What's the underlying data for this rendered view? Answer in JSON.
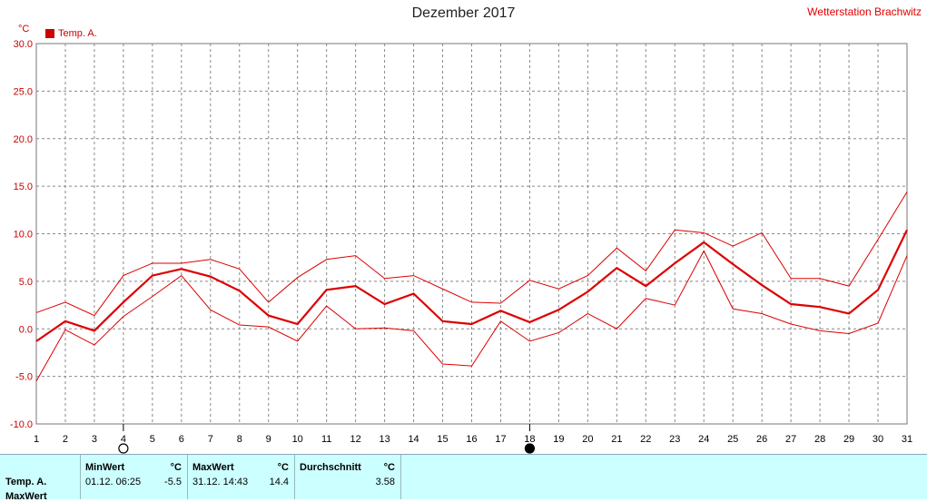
{
  "header": {
    "title": "Dezember 2017",
    "station": "Wetterstation Brachwitz",
    "unit": "°C",
    "legend_label": "Temp. A."
  },
  "chart_data": {
    "type": "line",
    "title": "Dezember 2017",
    "ylabel": "°C",
    "ylim": [
      -10,
      30
    ],
    "yticks": [
      "30.0",
      "25.0",
      "20.0",
      "15.0",
      "10.0",
      "5.0",
      "0.0",
      "-5.0",
      "-10.0"
    ],
    "x": [
      1,
      2,
      3,
      4,
      5,
      6,
      7,
      8,
      9,
      10,
      11,
      12,
      13,
      14,
      15,
      16,
      17,
      18,
      19,
      20,
      21,
      22,
      23,
      24,
      25,
      26,
      27,
      28,
      29,
      30,
      31
    ],
    "grid": true,
    "legend_position": "top-left",
    "colors": {
      "series": "#dd0000",
      "grid": "#888888"
    },
    "series": [
      {
        "name": "Temp. A.",
        "role": "mean",
        "values": [
          -1.3,
          0.8,
          -0.2,
          2.8,
          5.6,
          6.3,
          5.5,
          4.0,
          1.4,
          0.5,
          4.1,
          4.5,
          2.6,
          3.7,
          0.8,
          0.5,
          1.9,
          0.7,
          2.0,
          3.9,
          6.4,
          4.5,
          6.9,
          9.1,
          6.8,
          4.6,
          2.6,
          2.3,
          1.6,
          4.1,
          10.4
        ]
      },
      {
        "role": "max",
        "values": [
          1.7,
          2.8,
          1.4,
          5.6,
          6.9,
          6.9,
          7.3,
          6.3,
          2.8,
          5.4,
          7.3,
          7.7,
          5.3,
          5.6,
          4.2,
          2.8,
          2.7,
          5.1,
          4.2,
          5.6,
          8.5,
          6.1,
          10.4,
          10.1,
          8.7,
          10.1,
          5.3,
          5.3,
          4.5,
          9.4,
          14.4
        ]
      },
      {
        "role": "min",
        "values": [
          -5.5,
          -0.1,
          -1.7,
          1.3,
          3.4,
          5.6,
          2.0,
          0.4,
          0.2,
          -1.3,
          2.4,
          0.0,
          0.1,
          -0.2,
          -3.7,
          -3.9,
          0.8,
          -1.3,
          -0.4,
          1.6,
          0.0,
          3.2,
          2.5,
          8.2,
          2.1,
          1.6,
          0.5,
          -0.2,
          -0.5,
          0.6,
          7.7
        ]
      }
    ],
    "moon_markers": [
      {
        "day": 4,
        "phase": "full-moon"
      },
      {
        "day": 18,
        "phase": "new-moon"
      }
    ]
  },
  "stats": {
    "row_label": "Temp. A.",
    "row_label_2": "MaxWert",
    "min_header": "MinWert",
    "min_unit": "°C",
    "min_when": "01.12.  06:25",
    "min_value": "-5.5",
    "max_header": "MaxWert",
    "max_unit": "°C",
    "max_when": "31.12.  14:43",
    "max_value": "14.4",
    "avg_header": "Durchschnitt",
    "avg_unit": "°C",
    "avg_value": "3.58"
  }
}
